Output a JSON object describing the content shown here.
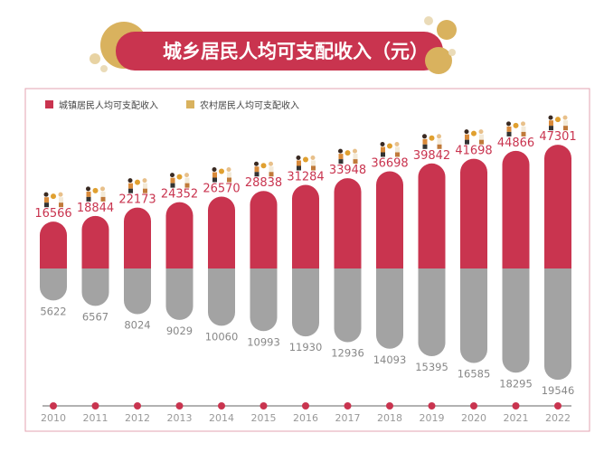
{
  "title": "城乡居民人均可支配收入（元）",
  "colors": {
    "urban": "#c9344f",
    "rural_legend": "#d9b25e",
    "rural_bar": "#a3a3a3",
    "accent": "#d9b25e"
  },
  "chart_data": {
    "type": "bar",
    "title": "城乡居民人均可支配收入（元）",
    "legend_position": "top-left",
    "categories": [
      "2010",
      "2011",
      "2012",
      "2013",
      "2014",
      "2015",
      "2016",
      "2017",
      "2018",
      "2019",
      "2020",
      "2021",
      "2022"
    ],
    "series": [
      {
        "name": "城镇居民人均可支配收入",
        "values": [
          16566,
          18844,
          22173,
          24352,
          26570,
          28838,
          31284,
          33948,
          36698,
          39842,
          41698,
          44866,
          47301
        ]
      },
      {
        "name": "农村居民人均可支配收入",
        "values": [
          5622,
          6567,
          8024,
          9029,
          10060,
          10993,
          11930,
          12936,
          14093,
          15395,
          16585,
          18295,
          19546
        ]
      }
    ]
  }
}
